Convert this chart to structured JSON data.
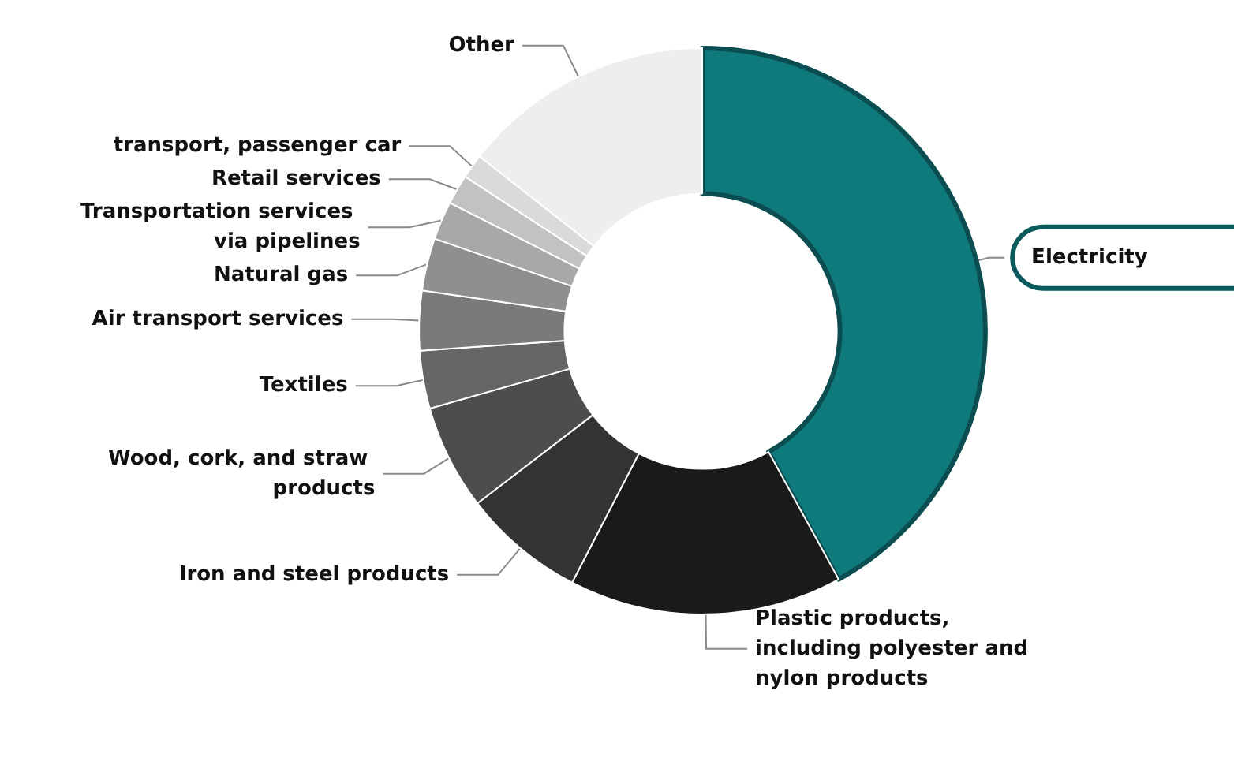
{
  "chart_data": {
    "type": "donut",
    "categories": [
      "Electricity",
      "Plastic products, including polyester and nylon products",
      "Iron and steel products",
      "Wood, cork, and straw products",
      "Textiles",
      "Air transport services",
      "Natural gas",
      "Transportation services via pipelines",
      "Retail services",
      "transport, passenger car",
      "Other"
    ],
    "values": [
      42,
      15.6,
      7,
      6,
      3.3,
      3.4,
      3,
      2.2,
      1.7,
      1.4,
      14.4
    ],
    "colors": [
      "#0e7a7c",
      "#1a1a1a",
      "#333333",
      "#4d4d4d",
      "#666666",
      "#7a7a7a",
      "#8f8f8f",
      "#a8a8a8",
      "#c2c2c2",
      "#dadada",
      "#eeeeee"
    ]
  }
}
